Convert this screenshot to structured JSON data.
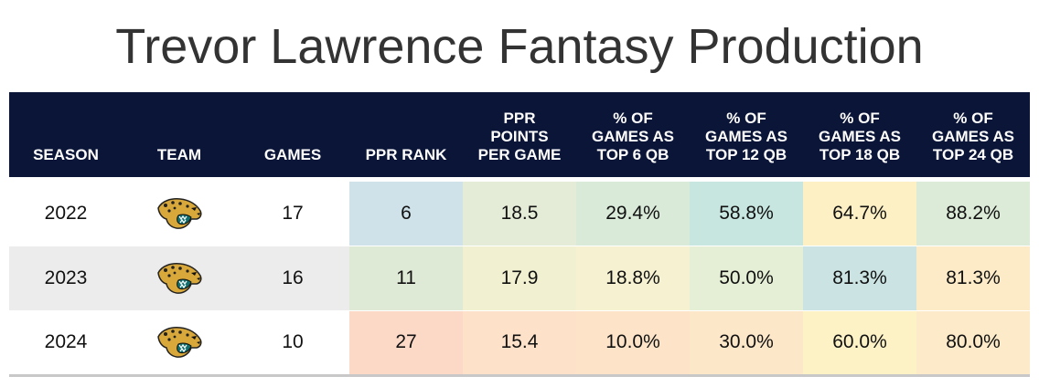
{
  "title": "Trevor Lawrence Fantasy Production",
  "columns": [
    "SEASON",
    "TEAM",
    "GAMES",
    "PPR RANK",
    "PPR\nPOINTS\nPER GAME",
    "% OF\nGAMES AS\nTOP 6 QB",
    "% OF\nGAMES AS\nTOP 12 QB",
    "% OF\nGAMES AS\nTOP 18 QB",
    "% OF\nGAMES AS\nTOP 24 QB"
  ],
  "rows": [
    {
      "season": "2022",
      "team_icon": "jaguars-logo-icon",
      "games": "17",
      "ppr_rank": "6",
      "ppg": "18.5",
      "top6": "29.4%",
      "top12": "58.8%",
      "top18": "64.7%",
      "top24": "88.2%",
      "colors": {
        "ppr_rank": "#cfe2ea",
        "ppg": "#e4ecd7",
        "top6": "#d9ead9",
        "top12": "#c6e6df",
        "top18": "#fdf0c4",
        "top24": "#dcebd7"
      }
    },
    {
      "season": "2023",
      "team_icon": "jaguars-logo-icon",
      "games": "16",
      "ppr_rank": "11",
      "ppg": "17.9",
      "top6": "18.8%",
      "top12": "50.0%",
      "top18": "81.3%",
      "top24": "81.3%",
      "colors": {
        "ppr_rank": "#deead6",
        "ppg": "#f1f1d2",
        "top6": "#f5f1d1",
        "top12": "#e5efd6",
        "top18": "#cbe3e3",
        "top24": "#fdebc8"
      }
    },
    {
      "season": "2024",
      "team_icon": "jaguars-logo-icon",
      "games": "10",
      "ppr_rank": "27",
      "ppg": "15.4",
      "top6": "10.0%",
      "top12": "30.0%",
      "top18": "60.0%",
      "top24": "80.0%",
      "colors": {
        "ppr_rank": "#fcd8c6",
        "ppg": "#fde2c9",
        "top6": "#fde4c9",
        "top12": "#fde7c9",
        "top18": "#fdf1c6",
        "top24": "#fdeac8"
      }
    }
  ]
}
